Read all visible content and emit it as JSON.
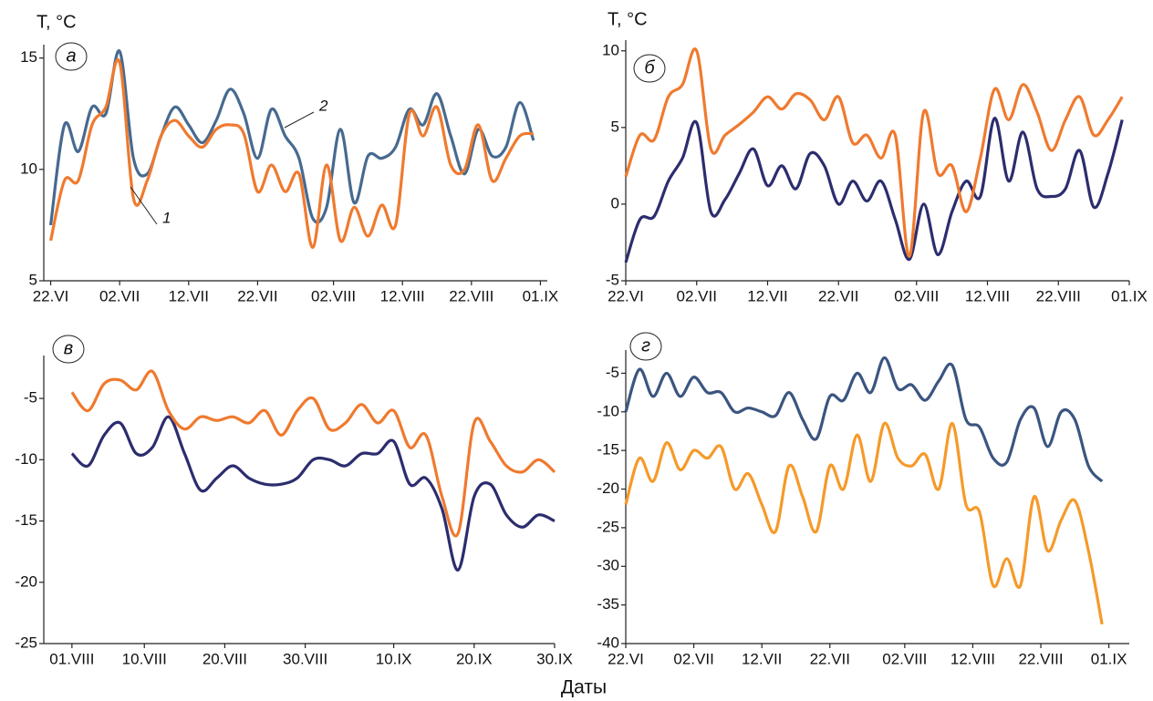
{
  "x_axis_label": "Даты",
  "chart_data": [
    {
      "type": "line",
      "panel_label": "а",
      "ylabel": "T, °C",
      "x": [
        0,
        2,
        4,
        6,
        8,
        10,
        12,
        14,
        16,
        18,
        20,
        22,
        24,
        26,
        28,
        30,
        32,
        34,
        36,
        38,
        40,
        42,
        44,
        46,
        48,
        50,
        52,
        54,
        56,
        58,
        60,
        62,
        64,
        66,
        68,
        70
      ],
      "xlim": [
        -1,
        72
      ],
      "ylim": [
        5,
        15.6
      ],
      "yticks": [
        5,
        10,
        15
      ],
      "xticks": [
        {
          "value": 0,
          "label": "22.VI"
        },
        {
          "value": 10,
          "label": "02.VII"
        },
        {
          "value": 20,
          "label": "12.VII"
        },
        {
          "value": 30,
          "label": "22.VII"
        },
        {
          "value": 41,
          "label": "02.VIII"
        },
        {
          "value": 51,
          "label": "12.VIII"
        },
        {
          "value": 61,
          "label": "22.VIII"
        },
        {
          "value": 71,
          "label": "01.IX"
        }
      ],
      "series": [
        {
          "name": "2",
          "color": "#476a8f",
          "values": [
            7.5,
            12.0,
            10.8,
            12.8,
            12.5,
            15.3,
            10.5,
            9.8,
            11.5,
            12.8,
            12.0,
            11.2,
            12.2,
            13.6,
            12.5,
            10.5,
            12.7,
            11.5,
            10.5,
            7.8,
            8.3,
            11.8,
            8.5,
            10.6,
            10.5,
            11.0,
            12.7,
            12.0,
            13.4,
            11.5,
            9.8,
            11.8,
            10.6,
            11.0,
            13.0,
            11.3
          ]
        },
        {
          "name": "1",
          "color": "#ef7a2f",
          "values": [
            6.8,
            9.5,
            9.5,
            12.0,
            12.8,
            14.8,
            8.7,
            9.5,
            11.5,
            12.2,
            11.5,
            11.0,
            11.8,
            12.0,
            11.6,
            9.0,
            10.2,
            9.0,
            9.8,
            6.5,
            10.2,
            6.8,
            8.3,
            7.0,
            8.4,
            7.5,
            12.5,
            11.5,
            12.8,
            10.2,
            10.0,
            12.0,
            9.5,
            10.5,
            11.5,
            11.6
          ]
        }
      ]
    },
    {
      "type": "line",
      "panel_label": "б",
      "ylabel": "T, °C",
      "x": [
        0,
        2,
        4,
        6,
        8,
        10,
        12,
        14,
        16,
        18,
        20,
        22,
        24,
        26,
        28,
        30,
        32,
        34,
        36,
        38,
        40,
        42,
        44,
        46,
        48,
        50,
        52,
        54,
        56,
        58,
        60,
        62,
        64,
        66,
        68,
        70
      ],
      "xlim": [
        0,
        71
      ],
      "ylim": [
        -5,
        10.7
      ],
      "yticks": [
        -5,
        0,
        5,
        10
      ],
      "xticks": [
        {
          "value": 0,
          "label": "22.VI"
        },
        {
          "value": 10,
          "label": "02.VII"
        },
        {
          "value": 20,
          "label": "12.VII"
        },
        {
          "value": 30,
          "label": "22.VII"
        },
        {
          "value": 41,
          "label": "02.VIII"
        },
        {
          "value": 51,
          "label": "12.VIII"
        },
        {
          "value": 61,
          "label": "22.VIII"
        },
        {
          "value": 71,
          "label": "01.IX"
        }
      ],
      "series": [
        {
          "color": "#2c2d6e",
          "values": [
            -3.8,
            -1.0,
            -0.8,
            1.5,
            3.0,
            5.3,
            -0.5,
            0.3,
            2.0,
            3.6,
            1.2,
            2.5,
            1.0,
            3.3,
            2.5,
            0.0,
            1.5,
            0.2,
            1.5,
            -1.0,
            -3.6,
            0.0,
            -3.3,
            -0.5,
            1.5,
            0.5,
            5.6,
            1.5,
            4.7,
            1.0,
            0.5,
            1.0,
            3.5,
            -0.2,
            2.0,
            5.5
          ]
        },
        {
          "color": "#ef7a2f",
          "values": [
            1.8,
            4.5,
            4.2,
            7.0,
            7.8,
            10.0,
            3.6,
            4.5,
            5.2,
            6.0,
            7.0,
            6.2,
            7.2,
            6.8,
            5.5,
            7.0,
            4.0,
            4.5,
            3.0,
            4.5,
            -3.4,
            6.0,
            2.0,
            2.5,
            -0.5,
            3.0,
            7.5,
            5.5,
            7.8,
            6.0,
            3.5,
            5.5,
            7.0,
            4.5,
            5.5,
            7.0
          ]
        }
      ]
    },
    {
      "type": "line",
      "panel_label": "в",
      "x": [
        0,
        2,
        4,
        6,
        8,
        10,
        12,
        14,
        16,
        18,
        20,
        22,
        24,
        26,
        28,
        30,
        32,
        34,
        36,
        38,
        40,
        42,
        44,
        46,
        48,
        50,
        52,
        54,
        56,
        58,
        60
      ],
      "xlim": [
        -3.5,
        60
      ],
      "ylim": [
        -25,
        -1.5
      ],
      "yticks": [
        -25,
        -20,
        -15,
        -10,
        -5
      ],
      "xticks": [
        {
          "value": 0,
          "label": "01.VIII"
        },
        {
          "value": 9,
          "label": "10.VIII"
        },
        {
          "value": 19,
          "label": "20.VIII"
        },
        {
          "value": 29,
          "label": "30.VIII"
        },
        {
          "value": 40,
          "label": "10.IX"
        },
        {
          "value": 50,
          "label": "20.IX"
        },
        {
          "value": 60,
          "label": "30.IX"
        }
      ],
      "series": [
        {
          "color": "#2c2d6e",
          "values": [
            -9.5,
            -10.5,
            -8.0,
            -7.0,
            -9.5,
            -9.0,
            -6.5,
            -9.5,
            -12.5,
            -11.5,
            -10.5,
            -11.5,
            -12.0,
            -12.0,
            -11.5,
            -10.0,
            -10.0,
            -10.5,
            -9.5,
            -9.5,
            -8.5,
            -12.0,
            -11.5,
            -14.0,
            -19.0,
            -13.0,
            -12.0,
            -14.5,
            -15.5,
            -14.5,
            -15.0
          ]
        },
        {
          "color": "#ef7a2f",
          "values": [
            -4.5,
            -6.0,
            -3.8,
            -3.5,
            -4.3,
            -2.8,
            -6.0,
            -7.5,
            -6.5,
            -6.8,
            -6.5,
            -7.0,
            -6.0,
            -8.0,
            -6.0,
            -5.0,
            -7.5,
            -7.0,
            -5.5,
            -7.0,
            -6.0,
            -9.0,
            -8.0,
            -13.0,
            -16.0,
            -7.0,
            -8.5,
            -10.5,
            -11.0,
            -10.0,
            -11.0
          ]
        }
      ]
    },
    {
      "type": "line",
      "panel_label": "г",
      "x": [
        0,
        2,
        4,
        6,
        8,
        10,
        12,
        14,
        16,
        18,
        20,
        22,
        24,
        26,
        28,
        30,
        32,
        34,
        36,
        38,
        40,
        42,
        44,
        46,
        48,
        50,
        52,
        54,
        56,
        58,
        60,
        62,
        64,
        66,
        68,
        70
      ],
      "xlim": [
        0,
        74
      ],
      "ylim": [
        -40,
        -2
      ],
      "yticks": [
        -40,
        -35,
        -30,
        -25,
        -20,
        -15,
        -10,
        -5
      ],
      "xticks": [
        {
          "value": 0,
          "label": "22.VI"
        },
        {
          "value": 10,
          "label": "02.VII"
        },
        {
          "value": 20,
          "label": "12.VII"
        },
        {
          "value": 30,
          "label": "22.VII"
        },
        {
          "value": 41,
          "label": "02.VIII"
        },
        {
          "value": 51,
          "label": "12.VIII"
        },
        {
          "value": 61,
          "label": "22.VIII"
        },
        {
          "value": 71,
          "label": "01.IX"
        }
      ],
      "series": [
        {
          "color": "#3b5580",
          "values": [
            -10,
            -4.5,
            -8,
            -5,
            -8,
            -5.5,
            -7.5,
            -7.5,
            -10,
            -9.5,
            -10,
            -10.5,
            -7.5,
            -11,
            -13.5,
            -8,
            -8.5,
            -5,
            -7.5,
            -3,
            -7,
            -6.5,
            -8.5,
            -6,
            -4,
            -11,
            -12,
            -16,
            -16.5,
            -11,
            -9.5,
            -14.5,
            -10,
            -11,
            -17,
            -19
          ]
        },
        {
          "color": "#f59a2a",
          "values": [
            -22,
            -16,
            -19,
            -14,
            -17.5,
            -15,
            -16,
            -14.5,
            -20,
            -18,
            -22,
            -25.5,
            -17,
            -21,
            -25.5,
            -17,
            -20,
            -13,
            -19,
            -11.5,
            -16,
            -17,
            -15.5,
            -20,
            -11.5,
            -22,
            -23,
            -32.5,
            -29,
            -32.5,
            -21,
            -28,
            -24,
            -21.5,
            -28,
            -37.5
          ]
        }
      ]
    }
  ]
}
